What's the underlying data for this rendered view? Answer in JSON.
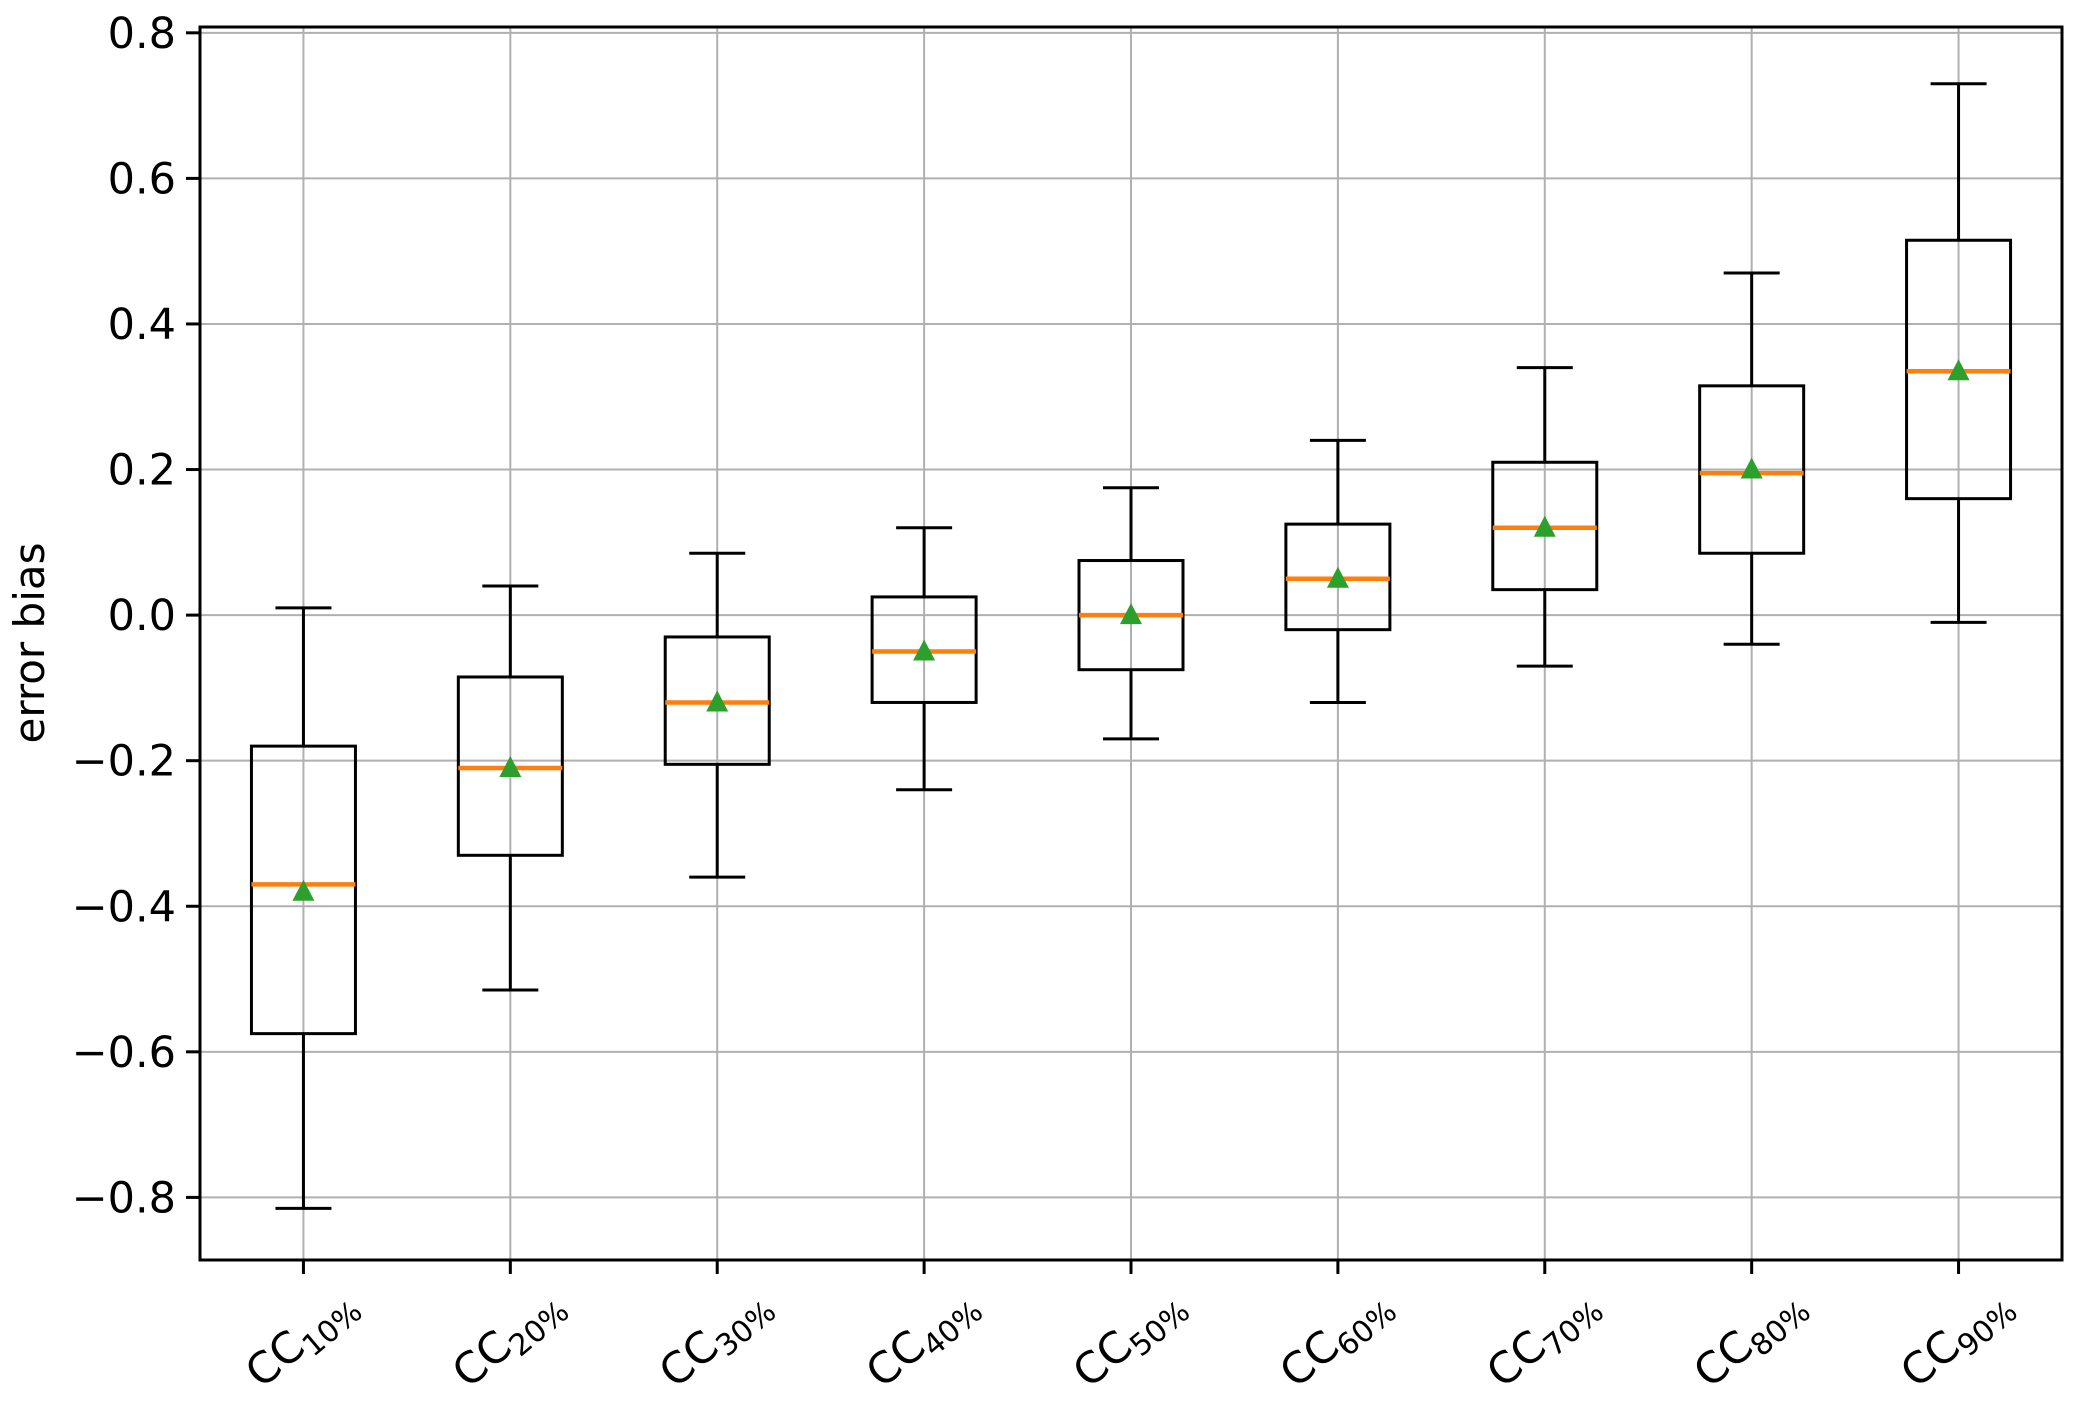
{
  "chart_data": {
    "type": "boxplot",
    "title": "",
    "xlabel": "",
    "ylabel": "error bias",
    "ylim": [
      -0.886,
      0.808
    ],
    "grid": true,
    "legend": "none",
    "categories": [
      "CC10%",
      "CC20%",
      "CC30%",
      "CC40%",
      "CC50%",
      "CC60%",
      "CC70%",
      "CC80%",
      "CC90%"
    ],
    "category_labels": [
      {
        "prefix": "CC",
        "sub": "10%"
      },
      {
        "prefix": "CC",
        "sub": "20%"
      },
      {
        "prefix": "CC",
        "sub": "30%"
      },
      {
        "prefix": "CC",
        "sub": "40%"
      },
      {
        "prefix": "CC",
        "sub": "50%"
      },
      {
        "prefix": "CC",
        "sub": "60%"
      },
      {
        "prefix": "CC",
        "sub": "70%"
      },
      {
        "prefix": "CC",
        "sub": "80%"
      },
      {
        "prefix": "CC",
        "sub": "90%"
      }
    ],
    "boxes": [
      {
        "label": "CC10%",
        "whisker_low": -0.815,
        "q1": -0.575,
        "median": -0.37,
        "mean": -0.38,
        "q3": -0.18,
        "whisker_high": 0.01
      },
      {
        "label": "CC20%",
        "whisker_low": -0.515,
        "q1": -0.33,
        "median": -0.21,
        "mean": -0.21,
        "q3": -0.085,
        "whisker_high": 0.04
      },
      {
        "label": "CC30%",
        "whisker_low": -0.36,
        "q1": -0.205,
        "median": -0.12,
        "mean": -0.12,
        "q3": -0.03,
        "whisker_high": 0.085
      },
      {
        "label": "CC40%",
        "whisker_low": -0.24,
        "q1": -0.12,
        "median": -0.05,
        "mean": -0.05,
        "q3": 0.025,
        "whisker_high": 0.12
      },
      {
        "label": "CC50%",
        "whisker_low": -0.17,
        "q1": -0.075,
        "median": 0.0,
        "mean": 0.0,
        "q3": 0.075,
        "whisker_high": 0.175
      },
      {
        "label": "CC60%",
        "whisker_low": -0.12,
        "q1": -0.02,
        "median": 0.05,
        "mean": 0.05,
        "q3": 0.125,
        "whisker_high": 0.24
      },
      {
        "label": "CC70%",
        "whisker_low": -0.07,
        "q1": 0.035,
        "median": 0.12,
        "mean": 0.12,
        "q3": 0.21,
        "whisker_high": 0.34
      },
      {
        "label": "CC80%",
        "whisker_low": -0.04,
        "q1": 0.085,
        "median": 0.195,
        "mean": 0.2,
        "q3": 0.315,
        "whisker_high": 0.47
      },
      {
        "label": "CC90%",
        "whisker_low": -0.01,
        "q1": 0.16,
        "median": 0.335,
        "mean": 0.335,
        "q3": 0.515,
        "whisker_high": 0.73
      }
    ],
    "yticks": [
      {
        "value": 0.8,
        "label": "0.8"
      },
      {
        "value": 0.6,
        "label": "0.6"
      },
      {
        "value": 0.4,
        "label": "0.4"
      },
      {
        "value": 0.2,
        "label": "0.2"
      },
      {
        "value": 0.0,
        "label": "0.0"
      },
      {
        "value": -0.2,
        "label": "−0.2"
      },
      {
        "value": -0.4,
        "label": "−0.4"
      },
      {
        "value": -0.6,
        "label": "−0.6"
      },
      {
        "value": -0.8,
        "label": "−0.8"
      }
    ],
    "colors": {
      "box_edge": "#000000",
      "median": "#ff7f0e",
      "mean_marker": "#2ca02c",
      "grid": "#b0b0b0",
      "spine": "#000000",
      "background": "#ffffff"
    },
    "marker_styles": {
      "mean": "triangle-up"
    }
  }
}
